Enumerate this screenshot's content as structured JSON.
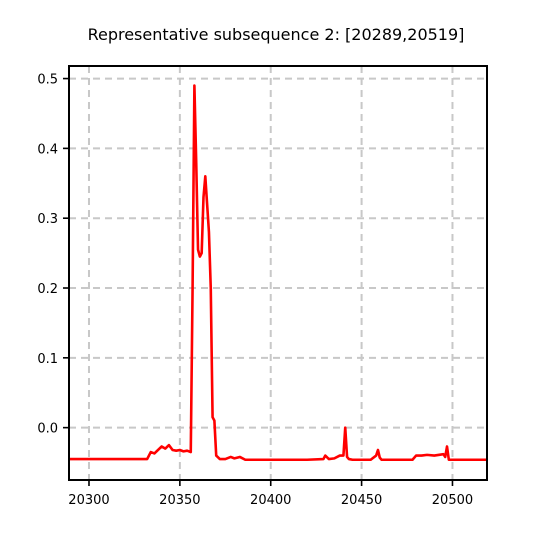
{
  "chart_data": {
    "type": "line",
    "title": "Representative subsequence 2: [20289,20519]",
    "xlabel": "",
    "ylabel": "",
    "xlim": [
      20289,
      20519
    ],
    "ylim": [
      -0.075,
      0.518
    ],
    "xticks": [
      20300,
      20350,
      20400,
      20450,
      20500
    ],
    "yticks": [
      0.0,
      0.1,
      0.2,
      0.3,
      0.4,
      0.5
    ],
    "xtick_labels": [
      "20300",
      "20350",
      "20400",
      "20450",
      "20500"
    ],
    "ytick_labels": [
      "0.0",
      "0.1",
      "0.2",
      "0.3",
      "0.4",
      "0.5"
    ],
    "grid": true,
    "legend": "none",
    "series": [
      {
        "color": "#ff0000",
        "x": [
          20289,
          20300,
          20320,
          20332,
          20334,
          20336,
          20338,
          20340,
          20342,
          20344,
          20346,
          20348,
          20350,
          20352,
          20354,
          20356,
          20357,
          20358,
          20359,
          20360,
          20361,
          20362,
          20363,
          20364,
          20365,
          20366,
          20367,
          20368,
          20369,
          20370,
          20372,
          20375,
          20378,
          20380,
          20383,
          20386,
          20390,
          20400,
          20410,
          20420,
          20429,
          20430,
          20432,
          20435,
          20438,
          20440,
          20441,
          20442,
          20443,
          20445,
          20450,
          20455,
          20458,
          20459,
          20460,
          20461,
          20463,
          20470,
          20478,
          20480,
          20483,
          20486,
          20490,
          20495,
          20496,
          20497,
          20498,
          20500,
          20510,
          20519
        ],
        "values": [
          -0.045,
          -0.045,
          -0.045,
          -0.045,
          -0.035,
          -0.037,
          -0.032,
          -0.027,
          -0.03,
          -0.025,
          -0.032,
          -0.033,
          -0.032,
          -0.034,
          -0.033,
          -0.035,
          0.2,
          0.49,
          0.38,
          0.255,
          0.245,
          0.25,
          0.33,
          0.36,
          0.32,
          0.28,
          0.2,
          0.015,
          0.01,
          -0.04,
          -0.045,
          -0.045,
          -0.042,
          -0.044,
          -0.042,
          -0.046,
          -0.046,
          -0.046,
          -0.046,
          -0.046,
          -0.045,
          -0.04,
          -0.045,
          -0.044,
          -0.04,
          -0.04,
          0.0,
          -0.042,
          -0.045,
          -0.046,
          -0.046,
          -0.046,
          -0.04,
          -0.032,
          -0.043,
          -0.046,
          -0.046,
          -0.046,
          -0.046,
          -0.04,
          -0.04,
          -0.039,
          -0.04,
          -0.038,
          -0.042,
          -0.027,
          -0.046,
          -0.046,
          -0.046,
          -0.046
        ]
      }
    ]
  }
}
